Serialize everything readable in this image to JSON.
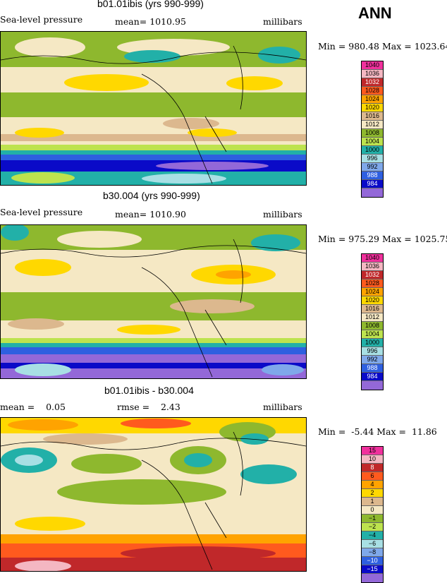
{
  "ann_label": "ANN",
  "panels": [
    {
      "title": "b01.01ibis (yrs 990-999)",
      "left_text": "Sea-level pressure",
      "center_text": "mean= 1010.95",
      "right_text": "millibars",
      "minmax": "Min = 980.48 Max = 1023.64",
      "legend": [
        {
          "label": "1040",
          "color": "#f0309c"
        },
        {
          "label": "1036",
          "color": "#f4b7c2"
        },
        {
          "label": "1032",
          "color": "#c0282a"
        },
        {
          "label": "1028",
          "color": "#ff5a1e"
        },
        {
          "label": "1024",
          "color": "#ffa300"
        },
        {
          "label": "1020",
          "color": "#ffd800"
        },
        {
          "label": "1016",
          "color": "#dcb88e"
        },
        {
          "label": "1012",
          "color": "#f5e8c4"
        },
        {
          "label": "1008",
          "color": "#8eb82e"
        },
        {
          "label": "1004",
          "color": "#bde34e"
        },
        {
          "label": "1000",
          "color": "#22b0a8"
        },
        {
          "label": "996",
          "color": "#a8dfe4"
        },
        {
          "label": "992",
          "color": "#7fa8ea"
        },
        {
          "label": "988",
          "color": "#2e5fe0"
        },
        {
          "label": "984",
          "color": "#0a0ac8"
        },
        {
          "label": "",
          "color": "#9368d8"
        }
      ]
    },
    {
      "title": "b30.004 (yrs 990-999)",
      "left_text": "Sea-level pressure",
      "center_text": "mean= 1010.90",
      "right_text": "millibars",
      "minmax": "Min = 975.29 Max = 1025.75",
      "legend": [
        {
          "label": "1040",
          "color": "#f0309c"
        },
        {
          "label": "1036",
          "color": "#f4b7c2"
        },
        {
          "label": "1032",
          "color": "#c0282a"
        },
        {
          "label": "1028",
          "color": "#ff5a1e"
        },
        {
          "label": "1024",
          "color": "#ffa300"
        },
        {
          "label": "1020",
          "color": "#ffd800"
        },
        {
          "label": "1016",
          "color": "#dcb88e"
        },
        {
          "label": "1012",
          "color": "#f5e8c4"
        },
        {
          "label": "1008",
          "color": "#8eb82e"
        },
        {
          "label": "1004",
          "color": "#bde34e"
        },
        {
          "label": "1000",
          "color": "#22b0a8"
        },
        {
          "label": "996",
          "color": "#a8dfe4"
        },
        {
          "label": "992",
          "color": "#7fa8ea"
        },
        {
          "label": "988",
          "color": "#2e5fe0"
        },
        {
          "label": "984",
          "color": "#0a0ac8"
        },
        {
          "label": "",
          "color": "#9368d8"
        }
      ]
    },
    {
      "title": "b01.01ibis - b30.004",
      "left_text": "mean =    0.05",
      "center_text": "rmse =    2.43",
      "right_text": "millibars",
      "minmax": "Min =  -5.44 Max =  11.86",
      "legend": [
        {
          "label": "15",
          "color": "#f0309c"
        },
        {
          "label": "10",
          "color": "#f4b7c2"
        },
        {
          "label": "8",
          "color": "#c0282a"
        },
        {
          "label": "6",
          "color": "#ff5a1e"
        },
        {
          "label": "4",
          "color": "#ffa300"
        },
        {
          "label": "2",
          "color": "#ffd800"
        },
        {
          "label": "1",
          "color": "#dcb88e"
        },
        {
          "label": "0",
          "color": "#f5e8c4"
        },
        {
          "label": "−1",
          "color": "#8eb82e"
        },
        {
          "label": "−2",
          "color": "#bde34e"
        },
        {
          "label": "−4",
          "color": "#22b0a8"
        },
        {
          "label": "−6",
          "color": "#a8dfe4"
        },
        {
          "label": "−8",
          "color": "#7fa8ea"
        },
        {
          "label": "−10",
          "color": "#2e5fe0"
        },
        {
          "label": "−15",
          "color": "#0a0ac8"
        },
        {
          "label": "",
          "color": "#9368d8"
        }
      ]
    }
  ]
}
